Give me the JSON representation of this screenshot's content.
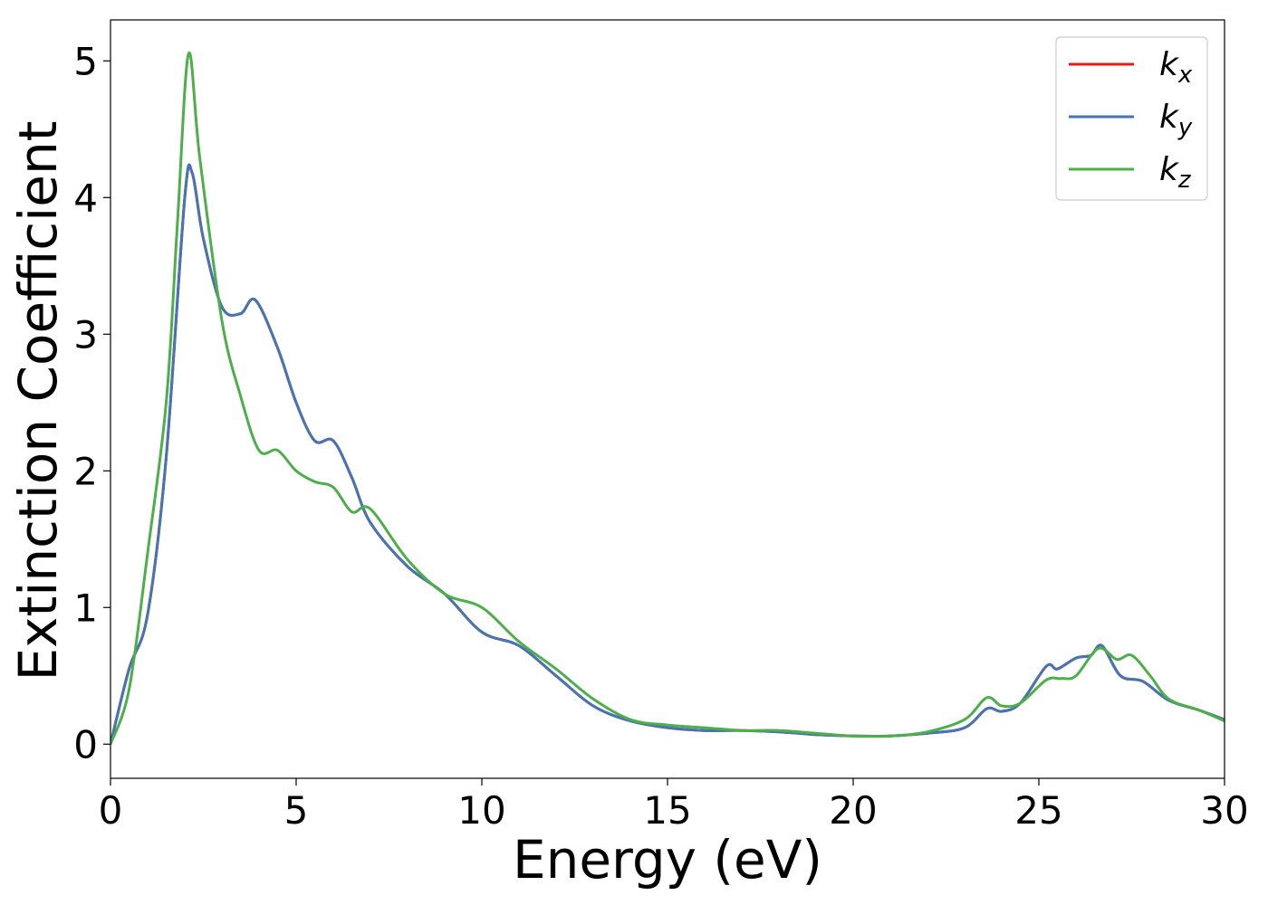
{
  "chart_data": {
    "type": "line",
    "xlabel": "Energy (eV)",
    "ylabel": "Extinction Coefficient",
    "xlim": [
      0,
      30
    ],
    "ylim": [
      -0.25,
      5.3
    ],
    "xticks": [
      0,
      5,
      10,
      15,
      20,
      25,
      30
    ],
    "yticks": [
      0,
      1,
      2,
      3,
      4,
      5
    ],
    "grid": false,
    "legend_position": "top-right",
    "series": [
      {
        "name": "x",
        "label_base": "k",
        "label_sub": "x",
        "color": "#e41a1c",
        "points": [
          [
            0,
            0.0
          ],
          [
            0.5,
            0.55
          ],
          [
            1.0,
            0.95
          ],
          [
            1.5,
            2.1
          ],
          [
            2.0,
            4.0
          ],
          [
            2.2,
            4.18
          ],
          [
            2.5,
            3.7
          ],
          [
            3.0,
            3.2
          ],
          [
            3.5,
            3.15
          ],
          [
            3.9,
            3.25
          ],
          [
            4.5,
            2.9
          ],
          [
            5.0,
            2.5
          ],
          [
            5.5,
            2.22
          ],
          [
            6.0,
            2.22
          ],
          [
            6.5,
            1.95
          ],
          [
            7.0,
            1.62
          ],
          [
            8.0,
            1.3
          ],
          [
            9.0,
            1.1
          ],
          [
            10.0,
            0.82
          ],
          [
            11.0,
            0.72
          ],
          [
            12.0,
            0.5
          ],
          [
            13.0,
            0.28
          ],
          [
            14.0,
            0.17
          ],
          [
            15.0,
            0.12
          ],
          [
            16.0,
            0.1
          ],
          [
            17.0,
            0.1
          ],
          [
            18.0,
            0.09
          ],
          [
            19.0,
            0.07
          ],
          [
            20.0,
            0.06
          ],
          [
            21.0,
            0.06
          ],
          [
            22.0,
            0.08
          ],
          [
            23.0,
            0.12
          ],
          [
            23.6,
            0.26
          ],
          [
            24.0,
            0.24
          ],
          [
            24.5,
            0.3
          ],
          [
            25.2,
            0.57
          ],
          [
            25.5,
            0.55
          ],
          [
            26.0,
            0.63
          ],
          [
            26.4,
            0.65
          ],
          [
            26.7,
            0.72
          ],
          [
            27.2,
            0.5
          ],
          [
            27.8,
            0.46
          ],
          [
            28.5,
            0.32
          ],
          [
            29.3,
            0.25
          ],
          [
            30.0,
            0.18
          ]
        ]
      },
      {
        "name": "y",
        "label_base": "k",
        "label_sub": "y",
        "color": "#4575b4",
        "points": [
          [
            0,
            0.0
          ],
          [
            0.5,
            0.55
          ],
          [
            1.0,
            0.95
          ],
          [
            1.5,
            2.1
          ],
          [
            2.0,
            4.0
          ],
          [
            2.2,
            4.18
          ],
          [
            2.5,
            3.7
          ],
          [
            3.0,
            3.2
          ],
          [
            3.5,
            3.15
          ],
          [
            3.9,
            3.25
          ],
          [
            4.5,
            2.9
          ],
          [
            5.0,
            2.5
          ],
          [
            5.5,
            2.22
          ],
          [
            6.0,
            2.22
          ],
          [
            6.5,
            1.95
          ],
          [
            7.0,
            1.62
          ],
          [
            8.0,
            1.3
          ],
          [
            9.0,
            1.1
          ],
          [
            10.0,
            0.82
          ],
          [
            11.0,
            0.72
          ],
          [
            12.0,
            0.5
          ],
          [
            13.0,
            0.28
          ],
          [
            14.0,
            0.17
          ],
          [
            15.0,
            0.12
          ],
          [
            16.0,
            0.1
          ],
          [
            17.0,
            0.1
          ],
          [
            18.0,
            0.09
          ],
          [
            19.0,
            0.07
          ],
          [
            20.0,
            0.06
          ],
          [
            21.0,
            0.06
          ],
          [
            22.0,
            0.08
          ],
          [
            23.0,
            0.12
          ],
          [
            23.6,
            0.26
          ],
          [
            24.0,
            0.24
          ],
          [
            24.5,
            0.3
          ],
          [
            25.2,
            0.57
          ],
          [
            25.5,
            0.55
          ],
          [
            26.0,
            0.63
          ],
          [
            26.4,
            0.65
          ],
          [
            26.7,
            0.72
          ],
          [
            27.2,
            0.5
          ],
          [
            27.8,
            0.46
          ],
          [
            28.5,
            0.32
          ],
          [
            29.3,
            0.25
          ],
          [
            30.0,
            0.18
          ]
        ]
      },
      {
        "name": "z",
        "label_base": "k",
        "label_sub": "z",
        "color": "#4daf4a",
        "points": [
          [
            0,
            0.0
          ],
          [
            0.5,
            0.4
          ],
          [
            1.0,
            1.4
          ],
          [
            1.5,
            2.5
          ],
          [
            1.8,
            3.8
          ],
          [
            2.1,
            5.05
          ],
          [
            2.4,
            4.3
          ],
          [
            3.0,
            3.1
          ],
          [
            3.5,
            2.55
          ],
          [
            4.0,
            2.15
          ],
          [
            4.5,
            2.15
          ],
          [
            5.0,
            2.0
          ],
          [
            5.5,
            1.92
          ],
          [
            6.0,
            1.88
          ],
          [
            6.5,
            1.7
          ],
          [
            7.0,
            1.72
          ],
          [
            8.0,
            1.35
          ],
          [
            9.0,
            1.1
          ],
          [
            10.0,
            1.0
          ],
          [
            11.0,
            0.75
          ],
          [
            12.0,
            0.55
          ],
          [
            13.0,
            0.33
          ],
          [
            14.0,
            0.18
          ],
          [
            15.0,
            0.14
          ],
          [
            16.0,
            0.12
          ],
          [
            17.0,
            0.1
          ],
          [
            18.0,
            0.1
          ],
          [
            19.0,
            0.08
          ],
          [
            20.0,
            0.06
          ],
          [
            21.0,
            0.06
          ],
          [
            22.0,
            0.09
          ],
          [
            23.0,
            0.18
          ],
          [
            23.6,
            0.34
          ],
          [
            24.0,
            0.28
          ],
          [
            24.5,
            0.3
          ],
          [
            25.2,
            0.47
          ],
          [
            25.6,
            0.48
          ],
          [
            26.0,
            0.5
          ],
          [
            26.6,
            0.7
          ],
          [
            27.1,
            0.62
          ],
          [
            27.5,
            0.65
          ],
          [
            28.0,
            0.5
          ],
          [
            28.5,
            0.33
          ],
          [
            29.3,
            0.25
          ],
          [
            30.0,
            0.17
          ]
        ]
      }
    ]
  }
}
